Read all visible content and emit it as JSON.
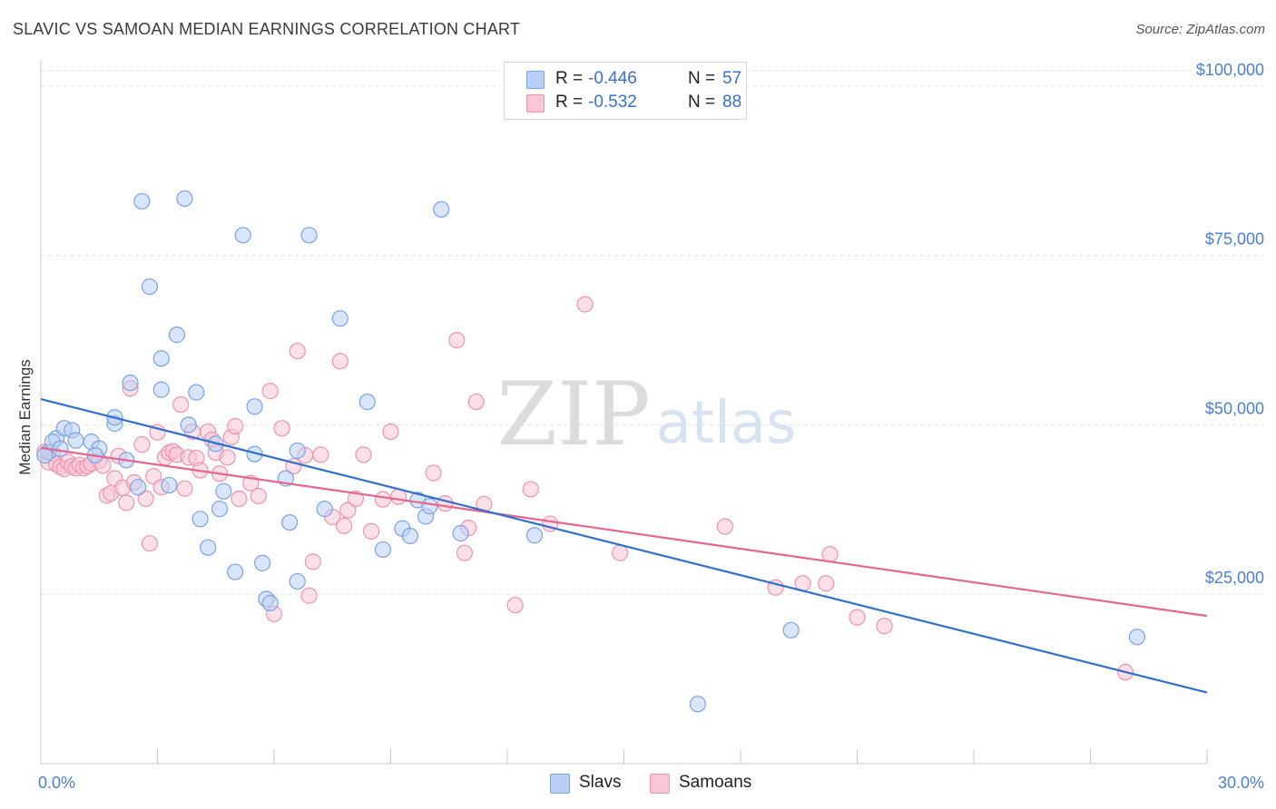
{
  "title": "SLAVIC VS SAMOAN MEDIAN EARNINGS CORRELATION CHART",
  "source": "Source: ZipAtlas.com",
  "watermark": {
    "zip": "ZIP",
    "atlas": "atlas"
  },
  "legend": {
    "rows": [
      {
        "label": "R =",
        "r": "-0.446",
        "n_label": "N =",
        "n": "57"
      },
      {
        "label": "R =",
        "r": "-0.532",
        "n_label": "N =",
        "n": "88"
      }
    ]
  },
  "bottom_legend": {
    "series1": "Slavs",
    "series2": "Samoans"
  },
  "chart_data": {
    "type": "scatter",
    "title": "SLAVIC VS SAMOAN MEDIAN EARNINGS CORRELATION CHART",
    "xlabel": "",
    "ylabel": "Median Earnings",
    "xlim": [
      0,
      30
    ],
    "ylim": [
      0,
      102000
    ],
    "x_tick_labels": {
      "min": "0.0%",
      "max": "30.0%"
    },
    "y_ticks": [
      {
        "value": 25000,
        "label": "$25,000"
      },
      {
        "value": 50000,
        "label": "$50,000"
      },
      {
        "value": 75000,
        "label": "$75,000"
      },
      {
        "value": 100000,
        "label": "$100,000"
      }
    ],
    "colors": {
      "slavs_fill": "#b9d0f5",
      "slavs_stroke": "#7aa3e2",
      "slavs_line": "#2f6fd0",
      "samoans_fill": "#f9c6d6",
      "samoans_stroke": "#ee93b0",
      "samoans_line": "#e3668f",
      "axis_text": "#4a7fd4"
    },
    "series": [
      {
        "name": "Slavs",
        "r": -0.446,
        "n": 57,
        "trend": {
          "x0": 0,
          "y0": 53800,
          "x1": 30,
          "y1": 10500
        },
        "points": [
          [
            0.2,
            46000
          ],
          [
            0.4,
            48000
          ],
          [
            0.3,
            47500
          ],
          [
            0.6,
            49500
          ],
          [
            0.5,
            46500
          ],
          [
            0.8,
            49200
          ],
          [
            0.9,
            47700
          ],
          [
            1.3,
            47500
          ],
          [
            1.5,
            46500
          ],
          [
            1.4,
            45500
          ],
          [
            1.9,
            50200
          ],
          [
            1.9,
            51100
          ],
          [
            2.2,
            44800
          ],
          [
            2.3,
            56200
          ],
          [
            2.5,
            40800
          ],
          [
            2.6,
            83000
          ],
          [
            2.8,
            70400
          ],
          [
            3.1,
            59800
          ],
          [
            3.1,
            55200
          ],
          [
            3.3,
            41100
          ],
          [
            3.5,
            63300
          ],
          [
            3.7,
            83400
          ],
          [
            3.8,
            50000
          ],
          [
            4.0,
            54800
          ],
          [
            4.1,
            36100
          ],
          [
            4.3,
            31900
          ],
          [
            4.5,
            47200
          ],
          [
            4.6,
            37600
          ],
          [
            4.7,
            40200
          ],
          [
            5.0,
            28300
          ],
          [
            5.2,
            78000
          ],
          [
            5.5,
            52700
          ],
          [
            5.5,
            45700
          ],
          [
            5.7,
            29600
          ],
          [
            5.8,
            24300
          ],
          [
            5.9,
            23700
          ],
          [
            6.3,
            42100
          ],
          [
            6.4,
            35600
          ],
          [
            6.6,
            26900
          ],
          [
            6.6,
            46200
          ],
          [
            6.9,
            78000
          ],
          [
            7.3,
            37600
          ],
          [
            7.7,
            65700
          ],
          [
            8.4,
            53400
          ],
          [
            8.8,
            31600
          ],
          [
            9.3,
            34700
          ],
          [
            9.5,
            33600
          ],
          [
            9.7,
            38900
          ],
          [
            9.9,
            36500
          ],
          [
            10.0,
            38000
          ],
          [
            10.3,
            81800
          ],
          [
            10.8,
            34000
          ],
          [
            12.7,
            33700
          ],
          [
            16.9,
            8800
          ],
          [
            19.3,
            19700
          ],
          [
            28.2,
            18700
          ],
          [
            0.1,
            45500
          ]
        ]
      },
      {
        "name": "Samoans",
        "r": -0.532,
        "n": 88,
        "trend": {
          "x0": 0,
          "y0": 46600,
          "x1": 30,
          "y1": 21800
        },
        "points": [
          [
            0.1,
            46000
          ],
          [
            0.2,
            44500
          ],
          [
            0.3,
            45800
          ],
          [
            0.4,
            44200
          ],
          [
            0.5,
            43800
          ],
          [
            0.6,
            43500
          ],
          [
            0.7,
            44500
          ],
          [
            0.8,
            43900
          ],
          [
            0.9,
            43600
          ],
          [
            1.0,
            44100
          ],
          [
            1.1,
            43600
          ],
          [
            1.2,
            43900
          ],
          [
            1.3,
            44300
          ],
          [
            1.5,
            44700
          ],
          [
            1.6,
            44000
          ],
          [
            1.7,
            39600
          ],
          [
            1.8,
            39900
          ],
          [
            1.9,
            42100
          ],
          [
            2.0,
            45400
          ],
          [
            2.1,
            40700
          ],
          [
            2.2,
            38500
          ],
          [
            2.3,
            55400
          ],
          [
            2.4,
            41500
          ],
          [
            2.6,
            47100
          ],
          [
            2.7,
            39100
          ],
          [
            2.8,
            32500
          ],
          [
            2.9,
            42400
          ],
          [
            3.0,
            48900
          ],
          [
            3.1,
            40800
          ],
          [
            3.2,
            45200
          ],
          [
            3.3,
            45900
          ],
          [
            3.4,
            46100
          ],
          [
            3.5,
            45600
          ],
          [
            3.6,
            53000
          ],
          [
            3.7,
            40600
          ],
          [
            3.8,
            45200
          ],
          [
            3.9,
            49000
          ],
          [
            4.0,
            45100
          ],
          [
            4.1,
            43300
          ],
          [
            4.3,
            49000
          ],
          [
            4.4,
            47800
          ],
          [
            4.5,
            45900
          ],
          [
            4.6,
            42800
          ],
          [
            4.8,
            45200
          ],
          [
            4.9,
            48200
          ],
          [
            5.0,
            49800
          ],
          [
            5.1,
            39100
          ],
          [
            5.4,
            41400
          ],
          [
            5.6,
            39500
          ],
          [
            5.9,
            55000
          ],
          [
            6.0,
            22100
          ],
          [
            6.2,
            49500
          ],
          [
            6.5,
            43900
          ],
          [
            6.6,
            60900
          ],
          [
            6.8,
            45500
          ],
          [
            6.9,
            24800
          ],
          [
            7.0,
            29800
          ],
          [
            7.2,
            45600
          ],
          [
            7.5,
            36400
          ],
          [
            7.7,
            59400
          ],
          [
            7.8,
            35100
          ],
          [
            7.9,
            37400
          ],
          [
            8.1,
            39100
          ],
          [
            8.3,
            45600
          ],
          [
            8.5,
            34300
          ],
          [
            8.8,
            39000
          ],
          [
            9.0,
            49000
          ],
          [
            9.2,
            39400
          ],
          [
            10.1,
            42900
          ],
          [
            10.4,
            38400
          ],
          [
            10.7,
            62500
          ],
          [
            10.9,
            31100
          ],
          [
            11.0,
            34800
          ],
          [
            11.2,
            53400
          ],
          [
            11.4,
            38300
          ],
          [
            12.2,
            23400
          ],
          [
            12.6,
            40500
          ],
          [
            13.1,
            35400
          ],
          [
            14.0,
            67800
          ],
          [
            14.9,
            31100
          ],
          [
            17.6,
            35000
          ],
          [
            18.9,
            26000
          ],
          [
            19.6,
            26600
          ],
          [
            20.2,
            26600
          ],
          [
            20.3,
            30900
          ],
          [
            21.0,
            21600
          ],
          [
            21.7,
            20300
          ],
          [
            27.9,
            13500
          ]
        ]
      }
    ]
  }
}
